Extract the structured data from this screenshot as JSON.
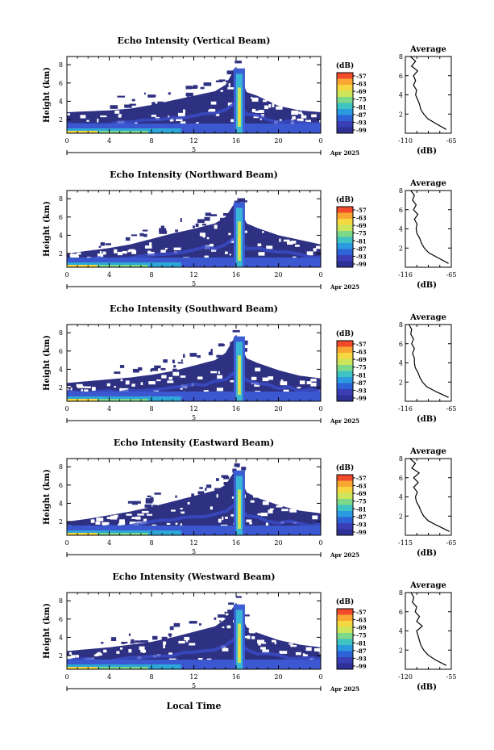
{
  "figure": {
    "xlabel": "Local Time",
    "x_ticks": [
      "0",
      "4",
      "8",
      "12",
      "16",
      "20",
      "0"
    ],
    "day_label": "5",
    "month_label": "Apr 2025",
    "y_ticks": [
      "2",
      "4",
      "6",
      "8"
    ],
    "ylabel": "Height (km)",
    "colorbar_unit": "(dB)",
    "colorbar_ticks": [
      "-57",
      "-63",
      "-69",
      "-75",
      "-81",
      "-87",
      "-93",
      "-99"
    ],
    "colorbar_colors": [
      "#f14b2c",
      "#f9a732",
      "#f5d741",
      "#cde55b",
      "#7dd88a",
      "#3fc3c3",
      "#2a9be0",
      "#2d63d6",
      "#3a3fb6",
      "#2e3196"
    ],
    "background_color": "#2e3082",
    "avg_title": "Average",
    "avg_xlabel": "(dB)"
  },
  "chart_data": [
    {
      "type": "heatmap",
      "title": "Echo Intensity (Vertical Beam)",
      "xlabel": "Local Time",
      "ylabel": "Height (km)",
      "xlim": [
        0,
        24
      ],
      "ylim": [
        0,
        9
      ],
      "value_unit": "dB",
      "color_range": [
        -99,
        -57
      ],
      "echo_top_km": [
        [
          0,
          2.8
        ],
        [
          2,
          2.9
        ],
        [
          4,
          3.0
        ],
        [
          6,
          3.2
        ],
        [
          8,
          3.6
        ],
        [
          10,
          4.1
        ],
        [
          12,
          4.6
        ],
        [
          14,
          5.1
        ],
        [
          15,
          5.8
        ],
        [
          16,
          7.8
        ],
        [
          17,
          5.0
        ],
        [
          18,
          4.6
        ],
        [
          20,
          3.5
        ],
        [
          22,
          3.0
        ],
        [
          24,
          2.8
        ]
      ],
      "average_profile": {
        "title": "Average",
        "xlabel": "(dB)",
        "xlim": [
          -110,
          -65
        ],
        "x_ticks": [
          "-110",
          "-65"
        ],
        "ylim": [
          0,
          8
        ],
        "height_km": [
          0.4,
          1,
          1.5,
          2,
          2.5,
          3,
          3.5,
          4,
          4.5,
          5,
          5.5,
          6,
          6.5,
          7,
          7.5,
          8
        ],
        "values_db": [
          -70,
          -80,
          -88,
          -92,
          -95,
          -96,
          -98,
          -100,
          -99,
          -102,
          -100,
          -102,
          -98,
          -104,
          -100,
          -105
        ]
      }
    },
    {
      "type": "heatmap",
      "title": "Echo Intensity (Northward Beam)",
      "xlabel": "Local Time",
      "ylabel": "Height (km)",
      "xlim": [
        0,
        24
      ],
      "ylim": [
        0,
        9
      ],
      "value_unit": "dB",
      "color_range": [
        -99,
        -57
      ],
      "echo_top_km": [
        [
          0,
          2.0
        ],
        [
          2,
          2.3
        ],
        [
          4,
          2.6
        ],
        [
          6,
          3.0
        ],
        [
          8,
          3.6
        ],
        [
          10,
          4.2
        ],
        [
          12,
          4.7
        ],
        [
          14,
          5.3
        ],
        [
          15,
          6.0
        ],
        [
          16,
          7.8
        ],
        [
          17,
          5.3
        ],
        [
          18,
          4.8
        ],
        [
          20,
          4.0
        ],
        [
          22,
          3.5
        ],
        [
          24,
          3.0
        ]
      ],
      "average_profile": {
        "title": "Average",
        "xlabel": "(dB)",
        "xlim": [
          -116,
          -65
        ],
        "x_ticks": [
          "-116",
          "-65"
        ],
        "ylim": [
          0,
          8
        ],
        "height_km": [
          0.4,
          1,
          1.5,
          2,
          2.5,
          3,
          3.5,
          4,
          4.5,
          5,
          5.5,
          6,
          6.5,
          7,
          7.5,
          8
        ],
        "values_db": [
          -68,
          -80,
          -90,
          -95,
          -98,
          -100,
          -103,
          -104,
          -103,
          -106,
          -102,
          -107,
          -104,
          -108,
          -106,
          -110
        ]
      }
    },
    {
      "type": "heatmap",
      "title": "Echo Intensity (Southward Beam)",
      "xlabel": "Local Time",
      "ylabel": "Height (km)",
      "xlim": [
        0,
        24
      ],
      "ylim": [
        0,
        9
      ],
      "value_unit": "dB",
      "color_range": [
        -99,
        -57
      ],
      "echo_top_km": [
        [
          0,
          2.5
        ],
        [
          2,
          2.7
        ],
        [
          4,
          2.9
        ],
        [
          6,
          3.1
        ],
        [
          8,
          3.4
        ],
        [
          10,
          3.8
        ],
        [
          12,
          4.4
        ],
        [
          14,
          5.0
        ],
        [
          15,
          5.8
        ],
        [
          16,
          7.8
        ],
        [
          17,
          5.2
        ],
        [
          18,
          4.7
        ],
        [
          20,
          3.9
        ],
        [
          22,
          3.3
        ],
        [
          24,
          3.0
        ]
      ],
      "average_profile": {
        "title": "Average",
        "xlabel": "(dB)",
        "xlim": [
          -116,
          -65
        ],
        "x_ticks": [
          "-116",
          "-65"
        ],
        "ylim": [
          0,
          8
        ],
        "height_km": [
          0.4,
          1,
          1.5,
          2,
          2.5,
          3,
          3.5,
          4,
          4.5,
          5,
          5.5,
          6,
          6.5,
          7,
          7.5,
          8
        ],
        "values_db": [
          -68,
          -82,
          -92,
          -97,
          -100,
          -102,
          -105,
          -106,
          -106,
          -108,
          -106,
          -109,
          -107,
          -110,
          -109,
          -112
        ]
      }
    },
    {
      "type": "heatmap",
      "title": "Echo Intensity (Eastward Beam)",
      "xlabel": "Local Time",
      "ylabel": "Height (km)",
      "xlim": [
        0,
        24
      ],
      "ylim": [
        0,
        9
      ],
      "value_unit": "dB",
      "color_range": [
        -99,
        -57
      ],
      "echo_top_km": [
        [
          0,
          2.0
        ],
        [
          2,
          2.3
        ],
        [
          4,
          2.7
        ],
        [
          6,
          3.1
        ],
        [
          8,
          3.6
        ],
        [
          10,
          4.2
        ],
        [
          12,
          4.8
        ],
        [
          14,
          5.4
        ],
        [
          15,
          6.0
        ],
        [
          16,
          7.8
        ],
        [
          17,
          5.2
        ],
        [
          18,
          4.6
        ],
        [
          20,
          3.8
        ],
        [
          22,
          3.2
        ],
        [
          24,
          2.9
        ]
      ],
      "average_profile": {
        "title": "Average",
        "xlabel": "(dB)",
        "xlim": [
          -115,
          -65
        ],
        "x_ticks": [
          "-115",
          "-65"
        ],
        "ylim": [
          0,
          8
        ],
        "height_km": [
          0.4,
          1,
          1.5,
          2,
          2.5,
          3,
          3.5,
          4,
          4.5,
          5,
          5.5,
          6,
          6.5,
          7,
          7.5,
          8
        ],
        "values_db": [
          -67,
          -80,
          -90,
          -95,
          -98,
          -100,
          -103,
          -104,
          -102,
          -106,
          -101,
          -106,
          -100,
          -108,
          -104,
          -110
        ]
      }
    },
    {
      "type": "heatmap",
      "title": "Echo Intensity (Westward Beam)",
      "xlabel": "Local Time",
      "ylabel": "Height (km)",
      "xlim": [
        0,
        24
      ],
      "ylim": [
        0,
        9
      ],
      "value_unit": "dB",
      "color_range": [
        -99,
        -57
      ],
      "echo_top_km": [
        [
          0,
          2.5
        ],
        [
          2,
          2.7
        ],
        [
          4,
          2.9
        ],
        [
          6,
          3.2
        ],
        [
          8,
          3.5
        ],
        [
          10,
          4.0
        ],
        [
          12,
          4.6
        ],
        [
          14,
          5.2
        ],
        [
          15,
          6.0
        ],
        [
          16,
          7.8
        ],
        [
          17,
          5.1
        ],
        [
          18,
          4.5
        ],
        [
          20,
          3.7
        ],
        [
          22,
          3.2
        ],
        [
          24,
          2.9
        ]
      ],
      "average_profile": {
        "title": "Average",
        "xlabel": "(dB)",
        "xlim": [
          -120,
          -55
        ],
        "x_ticks": [
          "-120",
          "-55"
        ],
        "ylim": [
          0,
          8
        ],
        "height_km": [
          0.4,
          1,
          1.5,
          2,
          2.5,
          3,
          3.5,
          4,
          4.5,
          5,
          5.5,
          6,
          6.5,
          7,
          7.5,
          8
        ],
        "values_db": [
          -62,
          -78,
          -88,
          -94,
          -98,
          -100,
          -102,
          -104,
          -96,
          -104,
          -100,
          -106,
          -104,
          -110,
          -108,
          -112
        ]
      }
    }
  ]
}
